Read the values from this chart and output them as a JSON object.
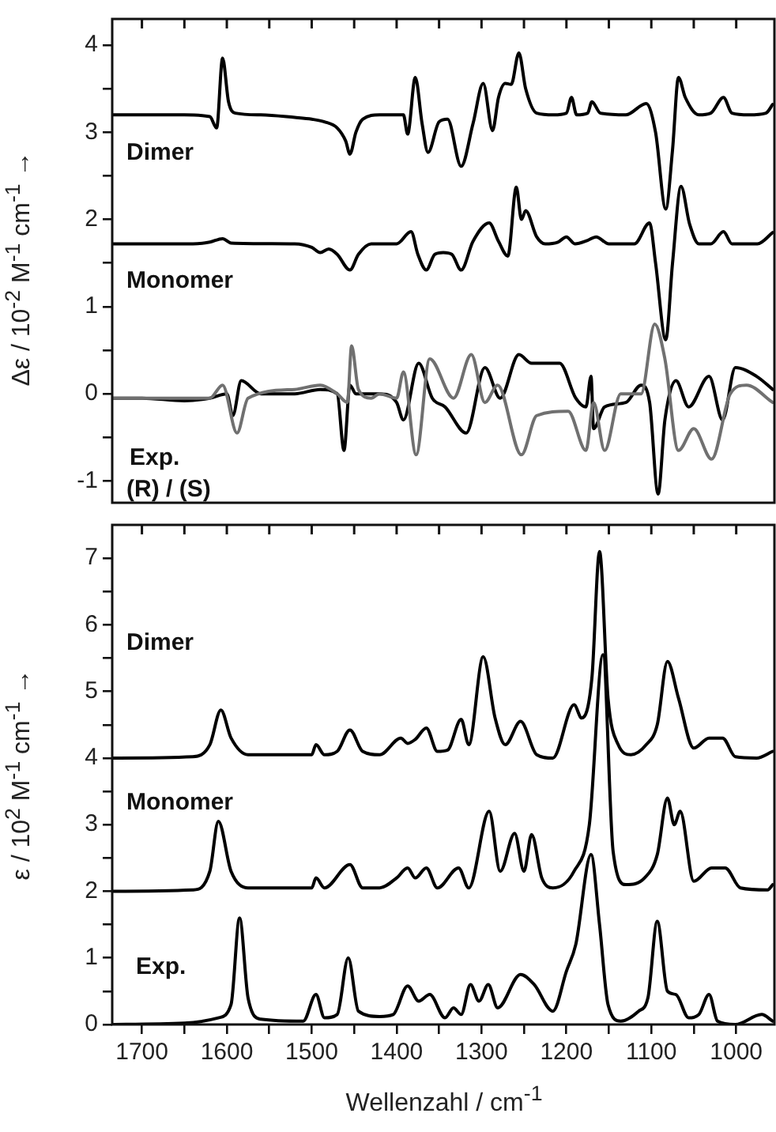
{
  "chart_data": [
    {
      "type": "line",
      "ylabel": "Δε / 10$^{-2}$ M$^{-1}$ cm$^{-1}$ →",
      "xlim": [
        1735,
        955
      ],
      "ylim": [
        -1.25,
        4.3
      ],
      "tick_labels": "y",
      "xticks": [
        1700,
        {
          "value": 1650,
          "label": null
        },
        1600,
        {
          "value": 1550,
          "label": null
        },
        1500,
        {
          "value": 1450,
          "label": null
        },
        1400,
        {
          "value": 1350,
          "label": null
        },
        1300,
        {
          "value": 1250,
          "label": null
        },
        1200,
        {
          "value": 1150,
          "label": null
        },
        1100,
        {
          "value": 1050,
          "label": null
        },
        1000
      ],
      "yticks": [
        -1,
        {
          "value": -0.5,
          "label": null
        },
        0,
        {
          "value": 0.5,
          "label": null
        },
        1,
        {
          "value": 1.5,
          "label": null
        },
        2,
        {
          "value": 2.5,
          "label": null
        },
        3,
        {
          "value": 3.5,
          "label": null
        },
        4
      ],
      "annotations": [
        "Dimer",
        "Monomer",
        "Exp.",
        "(R) / (S)"
      ],
      "series": [
        {
          "color": "#000000",
          "x": [
            1735,
            1650,
            1620,
            1612,
            1605,
            1598,
            1590,
            1560,
            1520,
            1500,
            1485,
            1470,
            1460,
            1455,
            1448,
            1440,
            1420,
            1392,
            1387,
            1378,
            1370,
            1363,
            1350,
            1340,
            1324,
            1310,
            1298,
            1287,
            1280,
            1272,
            1265,
            1256,
            1248,
            1235,
            1215,
            1200,
            1194,
            1188,
            1175,
            1170,
            1160,
            1130,
            1106,
            1095,
            1083,
            1075,
            1068,
            1060,
            1044,
            1030,
            1015,
            1005,
            985,
            965,
            957
          ],
          "values": [
            3.2,
            3.2,
            3.18,
            3.05,
            3.85,
            3.35,
            3.22,
            3.2,
            3.17,
            3.15,
            3.12,
            3.05,
            2.9,
            2.75,
            3.0,
            3.15,
            3.2,
            3.2,
            2.98,
            3.63,
            3.1,
            2.77,
            3.12,
            3.15,
            2.61,
            3.1,
            3.56,
            3.02,
            3.4,
            3.56,
            3.55,
            3.91,
            3.5,
            3.22,
            3.2,
            3.22,
            3.4,
            3.2,
            3.22,
            3.35,
            3.22,
            3.2,
            3.33,
            3.0,
            2.12,
            2.8,
            3.63,
            3.4,
            3.2,
            3.22,
            3.4,
            3.22,
            3.2,
            3.22,
            3.32
          ]
        },
        {
          "color": "#000000",
          "x": [
            1735,
            1640,
            1620,
            1605,
            1595,
            1520,
            1500,
            1490,
            1480,
            1470,
            1455,
            1445,
            1430,
            1400,
            1383,
            1375,
            1365,
            1355,
            1345,
            1335,
            1324,
            1310,
            1291,
            1280,
            1269,
            1259,
            1253,
            1248,
            1235,
            1225,
            1210,
            1200,
            1190,
            1175,
            1165,
            1150,
            1120,
            1102,
            1095,
            1083,
            1075,
            1065,
            1055,
            1044,
            1030,
            1015,
            1005,
            975,
            957
          ],
          "values": [
            1.72,
            1.72,
            1.74,
            1.78,
            1.73,
            1.72,
            1.68,
            1.62,
            1.66,
            1.6,
            1.42,
            1.6,
            1.72,
            1.72,
            1.86,
            1.6,
            1.42,
            1.6,
            1.62,
            1.6,
            1.42,
            1.75,
            1.96,
            1.75,
            1.58,
            2.37,
            2.0,
            2.1,
            1.8,
            1.72,
            1.74,
            1.8,
            1.72,
            1.76,
            1.8,
            1.72,
            1.72,
            1.96,
            1.5,
            0.62,
            1.5,
            2.38,
            1.95,
            1.72,
            1.72,
            1.86,
            1.72,
            1.72,
            1.85
          ]
        },
        {
          "color": "#707070",
          "x": [
            1735,
            1700,
            1620,
            1605,
            1588,
            1575,
            1520,
            1490,
            1470,
            1458,
            1453,
            1445,
            1430,
            1420,
            1400,
            1392,
            1377,
            1361,
            1333,
            1312,
            1296,
            1281,
            1253,
            1235,
            1198,
            1177,
            1168,
            1155,
            1136,
            1112,
            1096,
            1084,
            1068,
            1050,
            1029,
            1007,
            988,
            957
          ],
          "values": [
            -0.05,
            -0.05,
            -0.05,
            0.1,
            -0.45,
            -0.05,
            0.05,
            0.1,
            0.0,
            -0.1,
            0.55,
            0.05,
            -0.05,
            0.0,
            -0.05,
            0.25,
            -0.7,
            0.4,
            -0.05,
            0.45,
            -0.1,
            0.1,
            -0.7,
            -0.25,
            -0.2,
            -0.65,
            -0.1,
            -0.65,
            0.0,
            0.0,
            0.8,
            0.4,
            -0.65,
            -0.4,
            -0.75,
            0.0,
            0.1,
            -0.1
          ]
        },
        {
          "color": "#000000",
          "x": [
            1735,
            1700,
            1650,
            1620,
            1600,
            1593,
            1583,
            1560,
            1520,
            1490,
            1470,
            1462,
            1455,
            1448,
            1430,
            1420,
            1400,
            1392,
            1374,
            1358,
            1343,
            1318,
            1296,
            1278,
            1256,
            1241,
            1229,
            1208,
            1189,
            1177,
            1171,
            1168,
            1155,
            1130,
            1112,
            1102,
            1092,
            1084,
            1071,
            1056,
            1032,
            1016,
            1001,
            976,
            957
          ],
          "values": [
            -0.05,
            -0.05,
            -0.08,
            -0.05,
            0.0,
            -0.25,
            0.15,
            0.0,
            0.0,
            0.05,
            0.0,
            -0.65,
            0.1,
            0.0,
            0.0,
            0.0,
            -0.1,
            -0.3,
            0.35,
            -0.05,
            -0.15,
            -0.45,
            0.3,
            -0.05,
            0.45,
            0.35,
            0.35,
            0.35,
            -0.05,
            -0.15,
            0.2,
            -0.4,
            -0.15,
            -0.1,
            0.1,
            -0.1,
            -1.15,
            -0.3,
            0.15,
            -0.15,
            0.2,
            -0.3,
            0.3,
            0.2,
            0.05
          ]
        }
      ]
    },
    {
      "type": "line",
      "ylabel": "ε / 10$^{2}$ M$^{-1}$ cm$^{-1}$ →",
      "xlabel": "Wellenzahl / cm$^{-1}$",
      "xlim": [
        1735,
        955
      ],
      "ylim": [
        0,
        7.5
      ],
      "xticks": [
        1700,
        {
          "value": 1650,
          "label": null
        },
        1600,
        {
          "value": 1550,
          "label": null
        },
        1500,
        {
          "value": 1450,
          "label": null
        },
        1400,
        {
          "value": 1350,
          "label": null
        },
        1300,
        {
          "value": 1250,
          "label": null
        },
        1200,
        {
          "value": 1150,
          "label": null
        },
        1100,
        {
          "value": 1050,
          "label": null
        },
        1000
      ],
      "yticks": [
        0,
        {
          "value": 0.5,
          "label": null
        },
        1,
        {
          "value": 1.5,
          "label": null
        },
        2,
        {
          "value": 2.5,
          "label": null
        },
        3,
        {
          "value": 3.5,
          "label": null
        },
        4,
        {
          "value": 4.5,
          "label": null
        },
        5,
        {
          "value": 5.5,
          "label": null
        },
        6,
        {
          "value": 6.5,
          "label": null
        },
        7
      ],
      "annotations": [
        "Dimer",
        "Monomer",
        "Exp."
      ],
      "series": [
        {
          "color": "#000000",
          "x": [
            1735,
            1640,
            1620,
            1607,
            1595,
            1575,
            1500,
            1495,
            1485,
            1470,
            1455,
            1440,
            1420,
            1395,
            1387,
            1378,
            1365,
            1352,
            1340,
            1324,
            1315,
            1298,
            1284,
            1272,
            1254,
            1235,
            1216,
            1191,
            1182,
            1170,
            1161,
            1151,
            1139,
            1124,
            1106,
            1093,
            1081,
            1068,
            1050,
            1032,
            1016,
            1001,
            976,
            957
          ],
          "values": [
            4.0,
            4.02,
            4.2,
            4.72,
            4.3,
            4.05,
            4.05,
            4.2,
            4.05,
            4.1,
            4.42,
            4.1,
            4.05,
            4.3,
            4.22,
            4.28,
            4.45,
            4.1,
            4.12,
            4.58,
            4.2,
            5.52,
            4.6,
            4.2,
            4.55,
            4.05,
            4.0,
            4.8,
            4.6,
            5.2,
            7.1,
            4.9,
            4.2,
            4.05,
            4.2,
            4.5,
            5.45,
            4.9,
            4.15,
            4.3,
            4.3,
            4.02,
            4.0,
            4.1
          ]
        },
        {
          "color": "#000000",
          "x": [
            1735,
            1640,
            1620,
            1610,
            1595,
            1575,
            1500,
            1495,
            1485,
            1455,
            1440,
            1420,
            1400,
            1387,
            1378,
            1365,
            1352,
            1327,
            1315,
            1291,
            1278,
            1261,
            1250,
            1241,
            1229,
            1216,
            1191,
            1173,
            1157,
            1145,
            1130,
            1108,
            1093,
            1081,
            1073,
            1066,
            1050,
            1029,
            1013,
            995,
            963,
            957
          ],
          "values": [
            2.0,
            2.02,
            2.3,
            3.05,
            2.3,
            2.05,
            2.05,
            2.2,
            2.05,
            2.4,
            2.05,
            2.05,
            2.2,
            2.35,
            2.2,
            2.35,
            2.05,
            2.35,
            2.05,
            3.2,
            2.3,
            2.87,
            2.3,
            2.85,
            2.2,
            2.05,
            2.3,
            3.0,
            5.55,
            2.6,
            2.1,
            2.2,
            2.55,
            3.4,
            3.0,
            3.2,
            2.15,
            2.35,
            2.35,
            2.05,
            2.02,
            2.1
          ]
        },
        {
          "color": "#000000",
          "x": [
            1735,
            1650,
            1610,
            1595,
            1585,
            1575,
            1560,
            1510,
            1495,
            1485,
            1470,
            1457,
            1445,
            1420,
            1404,
            1387,
            1374,
            1361,
            1343,
            1333,
            1324,
            1313,
            1303,
            1292,
            1281,
            1254,
            1238,
            1216,
            1200,
            1189,
            1171,
            1161,
            1151,
            1136,
            1115,
            1104,
            1093,
            1081,
            1071,
            1056,
            1044,
            1032,
            1022,
            1001,
            970,
            957
          ],
          "values": [
            0.0,
            0.02,
            0.1,
            0.3,
            1.6,
            0.4,
            0.08,
            0.05,
            0.45,
            0.1,
            0.15,
            1.0,
            0.2,
            0.12,
            0.15,
            0.58,
            0.35,
            0.45,
            0.1,
            0.25,
            0.15,
            0.6,
            0.35,
            0.6,
            0.25,
            0.75,
            0.6,
            0.2,
            0.8,
            1.2,
            2.55,
            1.5,
            0.3,
            0.05,
            0.2,
            0.4,
            1.55,
            0.5,
            0.45,
            0.1,
            0.15,
            0.45,
            0.05,
            0.0,
            0.15,
            0.05
          ]
        }
      ]
    }
  ]
}
